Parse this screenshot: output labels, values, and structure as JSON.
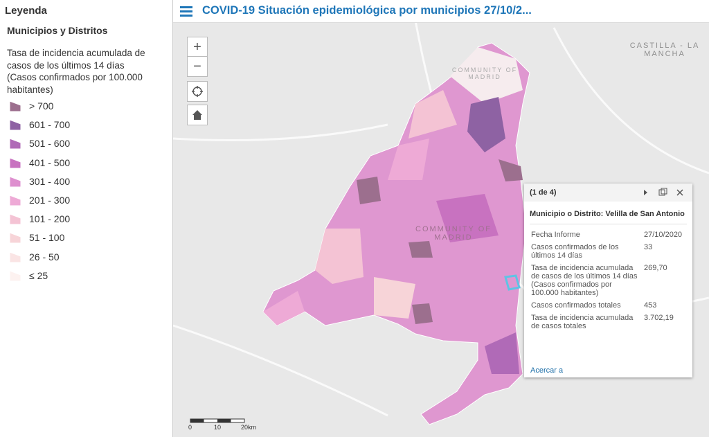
{
  "sidebar": {
    "title": "Leyenda",
    "layer": "Municipios y Distritos",
    "description": "Tasa de incidencia acumulada de casos de los últimos 14 días (Casos confirmados por 100.000 habitantes)",
    "legend": [
      {
        "label": "> 700",
        "color": "#9c6f8e"
      },
      {
        "label": "601 - 700",
        "color": "#8e62a3"
      },
      {
        "label": "501 - 600",
        "color": "#b06ab7"
      },
      {
        "label": "401 - 500",
        "color": "#c872c0"
      },
      {
        "label": "301 - 400",
        "color": "#de8fcf"
      },
      {
        "label": "201 - 300",
        "color": "#eeaad6"
      },
      {
        "label": "101 - 200",
        "color": "#f4c3d4"
      },
      {
        "label": "51 - 100",
        "color": "#f7d4d8"
      },
      {
        "label": "26 - 50",
        "color": "#fae4e4"
      },
      {
        "label": "≤ 25",
        "color": "#fdf2f0"
      }
    ]
  },
  "header": {
    "title": "COVID-19 Situación epidemiológica por municipios 27/10/2..."
  },
  "map": {
    "zoom_in": "+",
    "zoom_out": "−",
    "labels": [
      "CASTILLA - LA MANCHA",
      "COMMUNITY OF MADRID",
      "COMMUNITY OF MADRID"
    ],
    "scale": [
      "0",
      "10",
      "20km"
    ]
  },
  "popup": {
    "counter": "(1 de 4)",
    "title": "Municipio o Distrito: Velilla de San Antonio",
    "rows": [
      [
        "Fecha Informe",
        "27/10/2020"
      ],
      [
        "Casos confirmados de los últimos 14 días",
        "33"
      ],
      [
        "Tasa de incidencia acumulada de casos de los últimos 14 días (Casos confirmados por 100.000 habitantes)",
        "269,70"
      ],
      [
        "Casos confirmados totales",
        "453"
      ],
      [
        "Tasa de incidencia acumulada de casos totales",
        "3.702,19"
      ]
    ],
    "link": "Acercar a"
  }
}
